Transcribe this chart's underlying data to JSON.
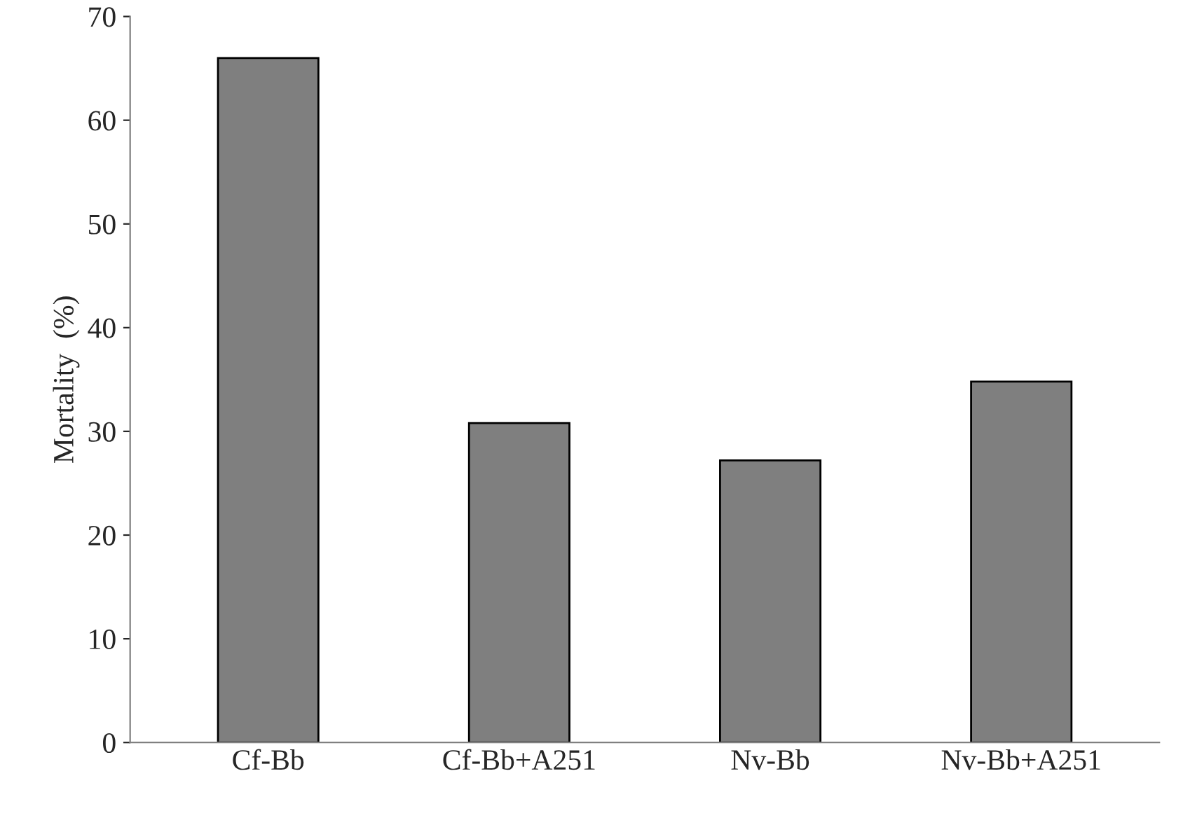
{
  "chart_data": {
    "type": "bar",
    "ylabel": "Mortality  (%)",
    "categories": [
      "Cf-Bb",
      "Cf-Bb+A251",
      "Nv-Bb",
      "Nv-Bb+A251"
    ],
    "values": [
      66.0,
      30.8,
      27.2,
      34.8
    ],
    "color": "#7f7f7f",
    "ylim": [
      0,
      70
    ],
    "yticks": [
      0,
      10,
      20,
      30,
      40,
      50,
      60,
      70
    ],
    "grid": false
  }
}
